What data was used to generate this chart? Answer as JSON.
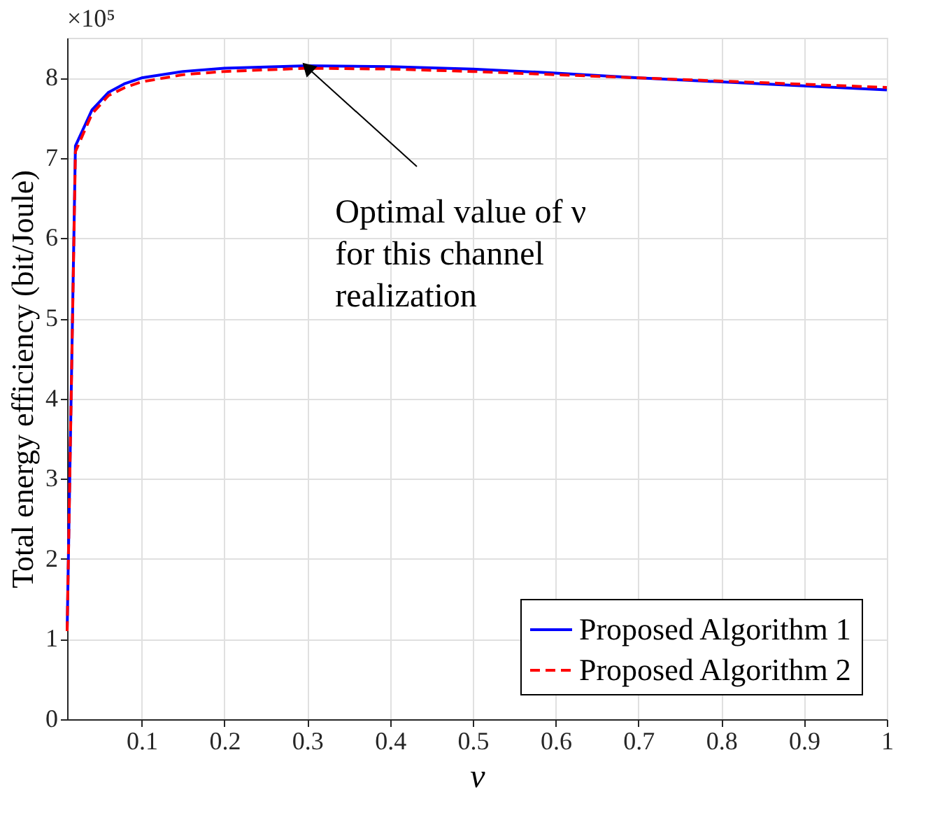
{
  "chart_data": {
    "type": "line",
    "xlabel": "ν",
    "ylabel": "Total energy efficiency (bit/Joule)",
    "x": [
      0.01,
      0.02,
      0.04,
      0.06,
      0.08,
      0.1,
      0.15,
      0.2,
      0.3,
      0.4,
      0.5,
      0.6,
      0.7,
      0.8,
      0.9,
      1.0
    ],
    "series": [
      {
        "name": "Proposed Algorithm 1",
        "color": "#0000ff",
        "line_style": "solid",
        "values": [
          1.1,
          7.15,
          7.6,
          7.82,
          7.93,
          8.0,
          8.08,
          8.12,
          8.15,
          8.14,
          8.11,
          8.06,
          8.0,
          7.95,
          7.9,
          7.85
        ]
      },
      {
        "name": "Proposed Algorithm 2",
        "color": "#ff0000",
        "line_style": "dashed",
        "values": [
          1.1,
          7.08,
          7.55,
          7.78,
          7.88,
          7.95,
          8.04,
          8.08,
          8.12,
          8.11,
          8.08,
          8.04,
          8.0,
          7.96,
          7.92,
          7.88
        ]
      }
    ],
    "xlim": [
      0.01,
      1
    ],
    "xticks": [
      0.1,
      0.2,
      0.3,
      0.4,
      0.5,
      0.6,
      0.7,
      0.8,
      0.9,
      1
    ],
    "ylim": [
      0,
      8.5
    ],
    "yticks": [
      0,
      1,
      2,
      3,
      4,
      5,
      6,
      7,
      8
    ],
    "annotations": [
      "×10⁵",
      {
        "text": "Optimal value of ν\nfor this channel\nrealization",
        "x": 0.3,
        "y": 8.13
      }
    ],
    "grid": true,
    "legend": "bottom right",
    "marker": "none"
  }
}
